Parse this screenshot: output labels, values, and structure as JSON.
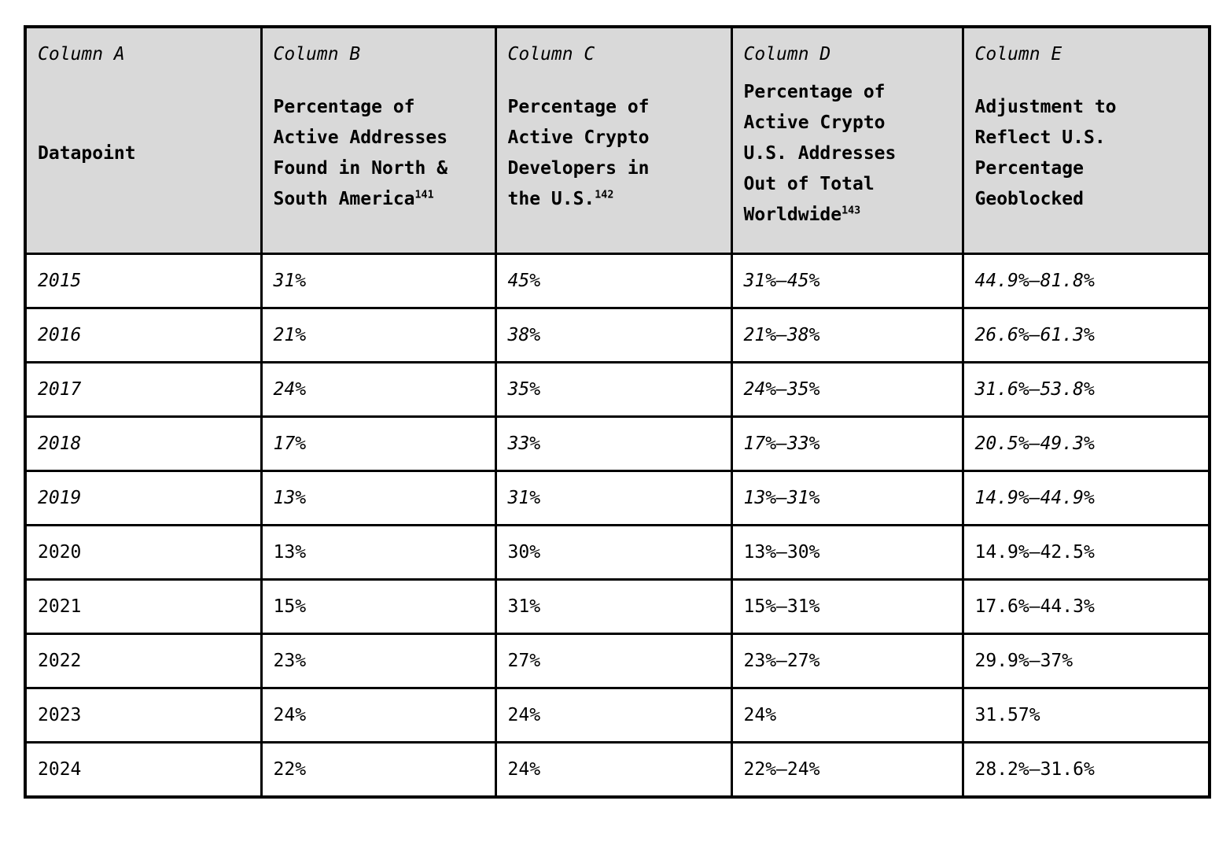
{
  "table": {
    "columns": [
      {
        "label": "Column A",
        "title": "Datapoint",
        "footnote": ""
      },
      {
        "label": "Column B",
        "title": "Percentage of\nActive Addresses\nFound in North &\nSouth America",
        "footnote": "141"
      },
      {
        "label": "Column C",
        "title": "Percentage of\nActive Crypto\nDevelopers in\nthe U.S.",
        "footnote": "142"
      },
      {
        "label": "Column D",
        "title": "Percentage of\nActive Crypto\nU.S. Addresses\nOut of Total\nWorldwide",
        "footnote": "143"
      },
      {
        "label": "Column E",
        "title": "Adjustment to\nReflect U.S.\nPercentage\nGeoblocked",
        "footnote": ""
      }
    ],
    "rows": [
      {
        "cells": [
          "2015",
          "31%",
          "45%",
          "31%–45%",
          "44.9%–81.8%"
        ],
        "italic": true
      },
      {
        "cells": [
          "2016",
          "21%",
          "38%",
          "21%–38%",
          "26.6%–61.3%"
        ],
        "italic": true
      },
      {
        "cells": [
          "2017",
          "24%",
          "35%",
          "24%–35%",
          "31.6%–53.8%"
        ],
        "italic": true
      },
      {
        "cells": [
          "2018",
          "17%",
          "33%",
          "17%–33%",
          "20.5%–49.3%"
        ],
        "italic": true
      },
      {
        "cells": [
          "2019",
          "13%",
          "31%",
          "13%–31%",
          "14.9%–44.9%"
        ],
        "italic": true
      },
      {
        "cells": [
          "2020",
          "13%",
          "30%",
          "13%–30%",
          "14.9%–42.5%"
        ],
        "italic": false
      },
      {
        "cells": [
          "2021",
          "15%",
          "31%",
          "15%–31%",
          "17.6%–44.3%"
        ],
        "italic": false
      },
      {
        "cells": [
          "2022",
          "23%",
          "27%",
          "23%–27%",
          "29.9%–37%"
        ],
        "italic": false
      },
      {
        "cells": [
          "2023",
          "24%",
          "24%",
          "24%",
          "31.57%"
        ],
        "italic": false
      },
      {
        "cells": [
          "2024",
          "22%",
          "24%",
          "22%–24%",
          "28.2%–31.6%"
        ],
        "italic": false
      }
    ]
  },
  "chart_data": {
    "type": "table",
    "title": "",
    "columns": [
      "Datapoint",
      "Percentage of Active Addresses Found in North & South America [141]",
      "Percentage of Active Crypto Developers in the U.S. [142]",
      "Percentage of Active Crypto U.S. Addresses Out of Total Worldwide [143]",
      "Adjustment to Reflect U.S. Percentage Geoblocked"
    ],
    "rows": [
      [
        "2015",
        "31%",
        "45%",
        "31%–45%",
        "44.9%–81.8%"
      ],
      [
        "2016",
        "21%",
        "38%",
        "21%–38%",
        "26.6%–61.3%"
      ],
      [
        "2017",
        "24%",
        "35%",
        "24%–35%",
        "31.6%–53.8%"
      ],
      [
        "2018",
        "17%",
        "33%",
        "17%–33%",
        "20.5%–49.3%"
      ],
      [
        "2019",
        "13%",
        "31%",
        "13%–31%",
        "14.9%–44.9%"
      ],
      [
        "2020",
        "13%",
        "30%",
        "13%–30%",
        "14.9%–42.5%"
      ],
      [
        "2021",
        "15%",
        "31%",
        "15%–31%",
        "17.6%–44.3%"
      ],
      [
        "2022",
        "23%",
        "27%",
        "23%–27%",
        "29.9%–37%"
      ],
      [
        "2023",
        "24%",
        "24%",
        "24%",
        "31.57%"
      ],
      [
        "2024",
        "22%",
        "24%",
        "22%–24%",
        "28.2%–31.6%"
      ]
    ]
  },
  "colors": {
    "header_background": "#d9d9d9",
    "border": "#000000",
    "text": "#000000",
    "page_background": "#ffffff"
  }
}
